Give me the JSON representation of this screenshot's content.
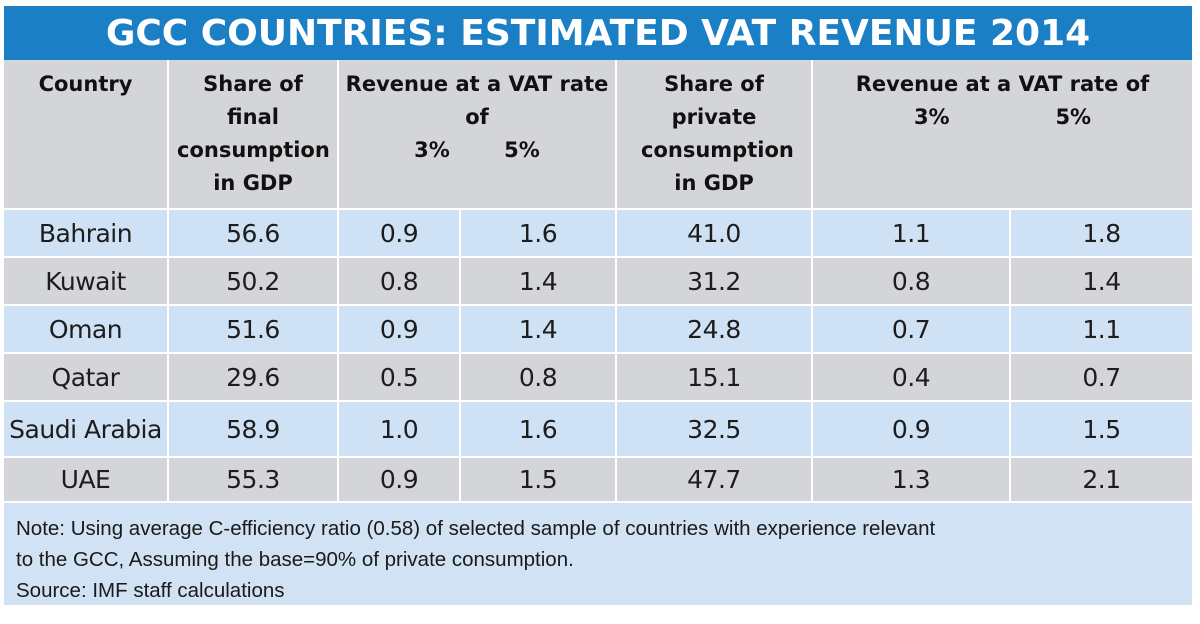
{
  "chart_data": {
    "type": "table",
    "title": "GCC COUNTRIES: ESTIMATED VAT REVENUE 2014",
    "headers": {
      "country": "Country",
      "share_final": "Share of final consumption in GDP",
      "revenue_group_1": "Revenue at a VAT rate of",
      "share_private": "Share of private consumption in GDP",
      "revenue_group_2": "Revenue at a VAT rate of",
      "rate_low": "3%",
      "rate_high": "5%"
    },
    "columns": [
      "Country",
      "Share of final consumption in GDP",
      "Revenue at 3% (final)",
      "Revenue at 5% (final)",
      "Share of private consumption in GDP",
      "Revenue at 3% (private)",
      "Revenue at 5% (private)"
    ],
    "rows": [
      {
        "country": "Bahrain",
        "share_final": "56.6",
        "rev_final_3": "0.9",
        "rev_final_5": "1.6",
        "share_private": "41.0",
        "rev_private_3": "1.1",
        "rev_private_5": "1.8"
      },
      {
        "country": "Kuwait",
        "share_final": "50.2",
        "rev_final_3": "0.8",
        "rev_final_5": "1.4",
        "share_private": "31.2",
        "rev_private_3": "0.8",
        "rev_private_5": "1.4"
      },
      {
        "country": "Oman",
        "share_final": "51.6",
        "rev_final_3": "0.9",
        "rev_final_5": "1.4",
        "share_private": "24.8",
        "rev_private_3": "0.7",
        "rev_private_5": "1.1"
      },
      {
        "country": "Qatar",
        "share_final": "29.6",
        "rev_final_3": "0.5",
        "rev_final_5": "0.8",
        "share_private": "15.1",
        "rev_private_3": "0.4",
        "rev_private_5": "0.7"
      },
      {
        "country": "Saudi Arabia",
        "share_final": "58.9",
        "rev_final_3": "1.0",
        "rev_final_5": "1.6",
        "share_private": "32.5",
        "rev_private_3": "0.9",
        "rev_private_5": "1.5"
      },
      {
        "country": "UAE",
        "share_final": "55.3",
        "rev_final_3": "0.9",
        "rev_final_5": "1.5",
        "share_private": "47.7",
        "rev_private_3": "1.3",
        "rev_private_5": "2.1"
      }
    ],
    "note_line_1": "Note: Using average C-efficiency ratio (0.58) of selected sample of countries with experience relevant",
    "note_line_2": "to the GCC, Assuming the base=90% of private consumption.",
    "source": "Source: IMF staff calculations"
  },
  "colors": {
    "title_bar": "#1b7fc6",
    "header_bg": "#d3d5d8",
    "row_blue": "#cfe1f4",
    "row_grey": "#d3d5d8"
  }
}
